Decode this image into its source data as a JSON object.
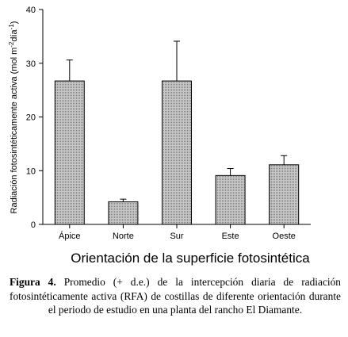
{
  "chart_data": {
    "type": "bar",
    "categories": [
      "Ápice",
      "Norte",
      "Sur",
      "Este",
      "Oeste"
    ],
    "values": [
      26.7,
      4.2,
      26.7,
      9.1,
      11.1
    ],
    "error": [
      3.9,
      0.5,
      7.4,
      1.3,
      1.7
    ],
    "ylim": [
      0,
      40
    ],
    "yticks": [
      0,
      10,
      20,
      30,
      40
    ],
    "ylabel": "Radiación fotosintéticamente activa (mol m",
    "ylabel_sup1": "-2",
    "ylabel_mid": "día",
    "ylabel_sup2": "-1",
    "ylabel_end": ")",
    "xlabel": "Orientación de la superficie fotosintética",
    "bar_fill": "#b4b4b4",
    "grid": false
  },
  "caption": {
    "label": "Figura 4.",
    "text": " Promedio (+ d.e.) de la intercepción diaria de radiación fotosintéticamente activa (RFA) de costillas de diferente orientación durante el periodo de estudio en una planta del rancho El Diamante."
  }
}
